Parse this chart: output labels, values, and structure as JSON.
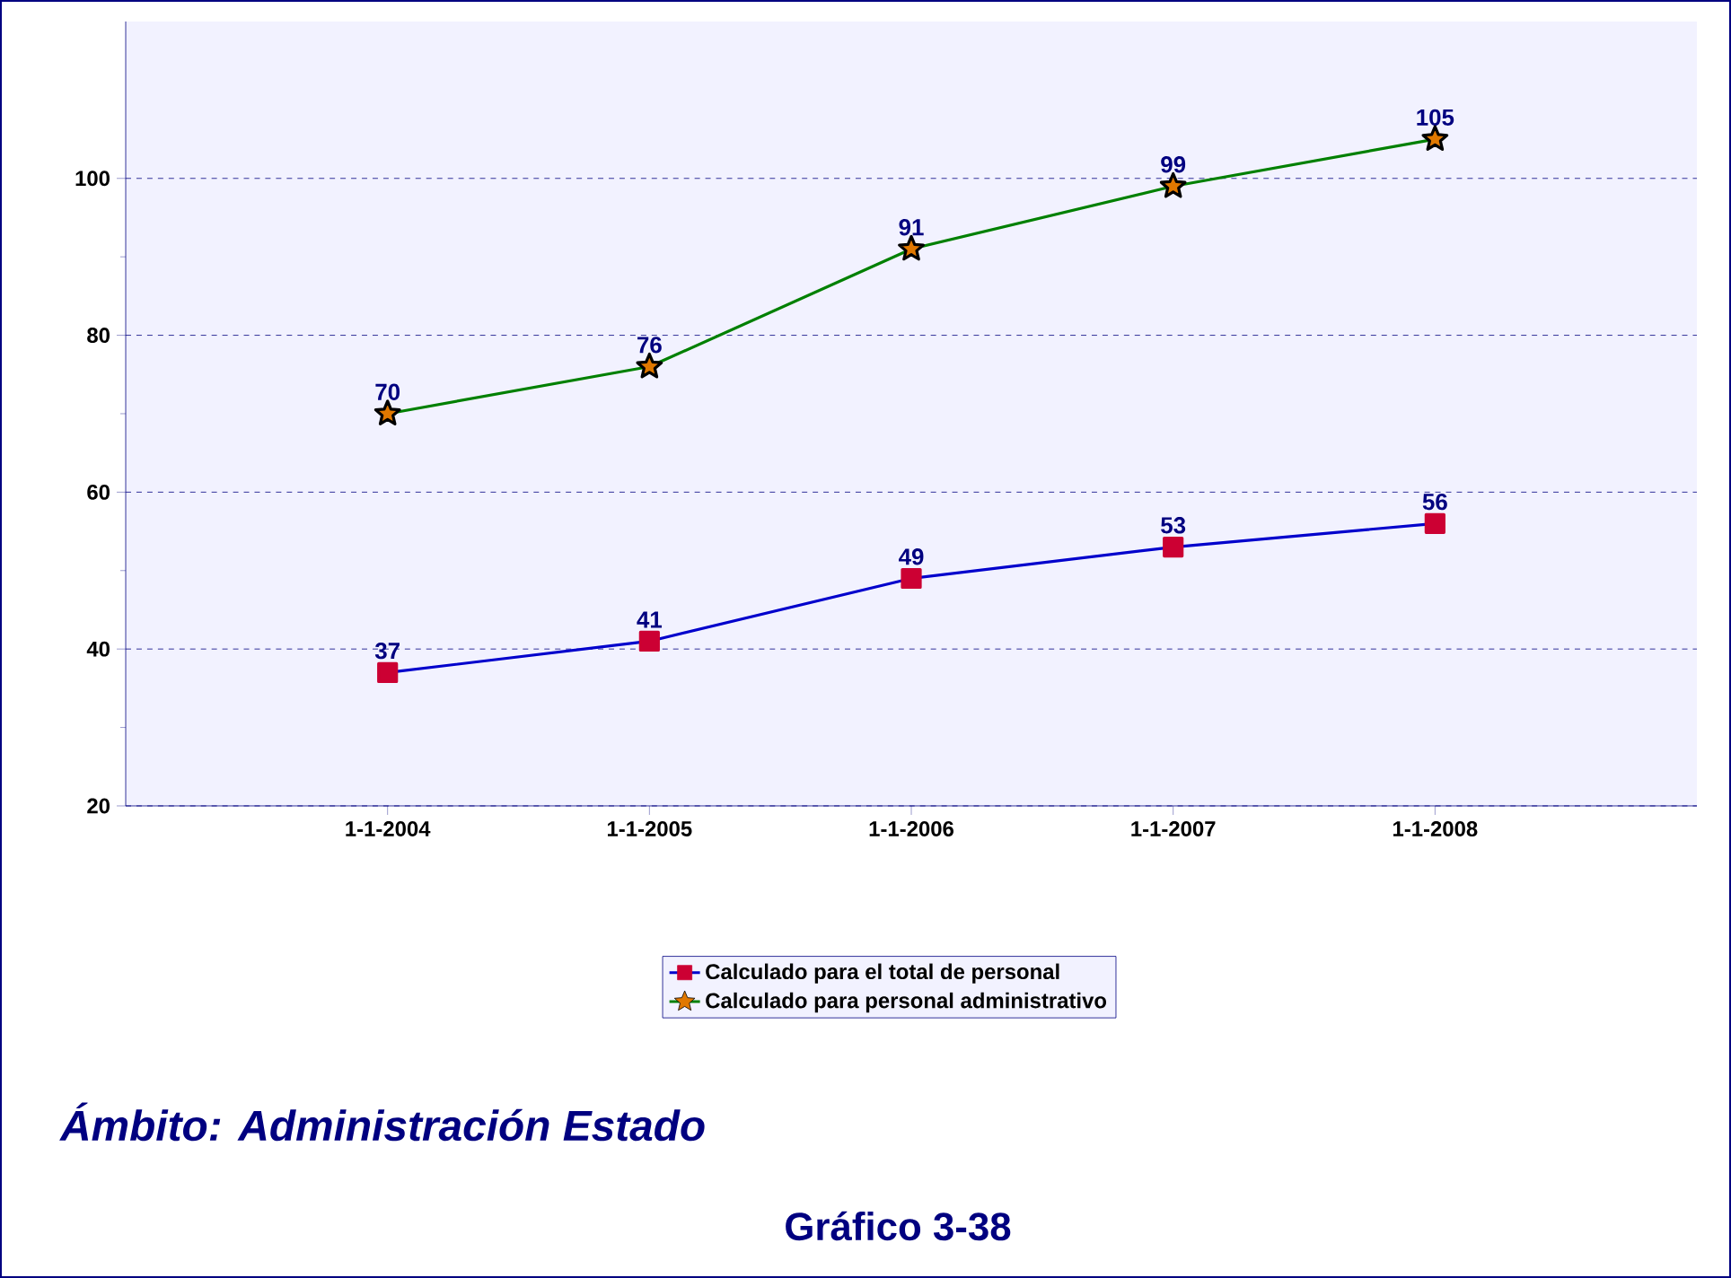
{
  "chart_data": {
    "type": "line",
    "categories": [
      "1-1-2004",
      "1-1-2005",
      "1-1-2006",
      "1-1-2007",
      "1-1-2008"
    ],
    "series": [
      {
        "name": "Calculado para el total de personal",
        "color": "#0000cc",
        "marker": "square",
        "colors": [
          "#cc0033",
          "#cc0033",
          "#cc0033",
          "#cc0033",
          "#cc0033"
        ],
        "values": [
          37,
          41,
          49,
          53,
          56
        ]
      },
      {
        "name": "Calculado para personal administrativo",
        "color": "#008000",
        "marker": "star",
        "colors": [
          "#e07800",
          "#e07800",
          "#e07800",
          "#e07800",
          "#e07800"
        ],
        "values": [
          70,
          76,
          91,
          99,
          105
        ]
      }
    ],
    "ylim": [
      20,
      120
    ],
    "yticks": [
      20,
      40,
      60,
      80,
      100
    ],
    "grid": "y",
    "legend": "bottom",
    "data_labels": true,
    "annotations": [
      "*Ámbito: Administración Estado*",
      "Gráfico 3-38"
    ]
  }
}
